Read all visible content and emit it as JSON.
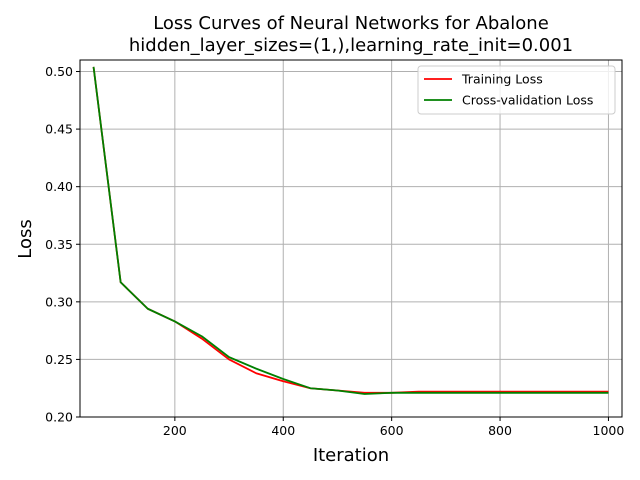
{
  "chart_data": {
    "type": "line",
    "title": "Loss Curves of Neural Networks for Abalone",
    "subtitle": "hidden_layer_sizes=(1,),learning_rate_init=0.001",
    "xlabel": "Iteration",
    "ylabel": "Loss",
    "xlim": [
      25,
      1025
    ],
    "ylim": [
      0.2,
      0.51
    ],
    "x_ticks": [
      200,
      400,
      600,
      800,
      1000
    ],
    "y_ticks": [
      0.2,
      0.25,
      0.3,
      0.35,
      0.4,
      0.45,
      0.5
    ],
    "x_tick_labels": [
      "200",
      "400",
      "600",
      "800",
      "1000"
    ],
    "y_tick_labels": [
      "0.20",
      "0.25",
      "0.30",
      "0.35",
      "0.40",
      "0.45",
      "0.50"
    ],
    "grid": true,
    "legend_position": "top-right",
    "x": [
      50,
      100,
      150,
      200,
      250,
      300,
      350,
      400,
      450,
      500,
      550,
      600,
      650,
      700,
      750,
      800,
      850,
      900,
      950,
      1000
    ],
    "series": [
      {
        "name": "Training Loss",
        "color": "#ff0000",
        "values": [
          0.504,
          0.317,
          0.294,
          0.283,
          0.268,
          0.25,
          0.238,
          0.231,
          0.225,
          0.223,
          0.221,
          0.221,
          0.222,
          0.222,
          0.222,
          0.222,
          0.222,
          0.222,
          0.222,
          0.222
        ]
      },
      {
        "name": "Cross-validation Loss",
        "color": "#008000",
        "values": [
          0.504,
          0.317,
          0.294,
          0.283,
          0.27,
          0.252,
          0.242,
          0.233,
          0.225,
          0.223,
          0.22,
          0.221,
          0.221,
          0.221,
          0.221,
          0.221,
          0.221,
          0.221,
          0.221,
          0.221
        ]
      }
    ]
  }
}
